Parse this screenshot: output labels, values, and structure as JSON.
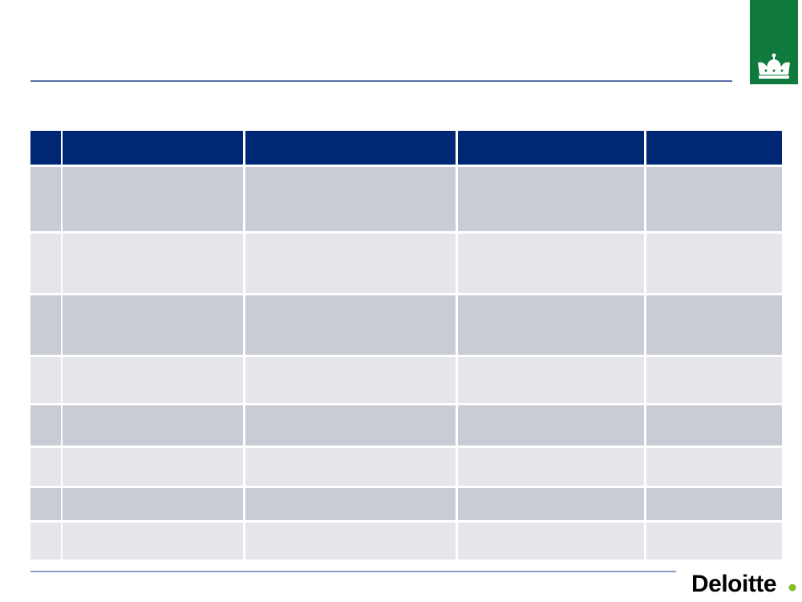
{
  "logo": {
    "text": "Deloitte"
  }
}
